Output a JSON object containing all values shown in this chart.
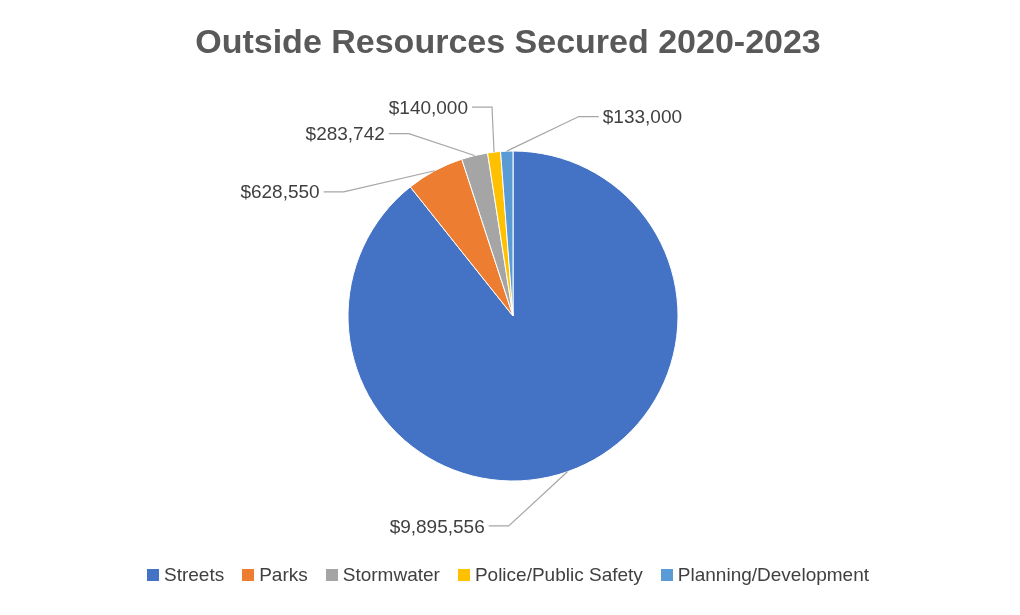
{
  "chart_data": {
    "type": "pie",
    "title": "Outside Resources Secured 2020-2023",
    "categories": [
      "Streets",
      "Parks",
      "Stormwater",
      "Police/Public Safety",
      "Planning/Development"
    ],
    "values": [
      9895556,
      628550,
      283742,
      140000,
      133000
    ],
    "value_labels": [
      "$9,895,556",
      "$628,550",
      "$283,742",
      "$140,000",
      "$133,000"
    ],
    "colors": [
      "#4472c4",
      "#ed7d31",
      "#a5a5a5",
      "#ffc000",
      "#5b9bd5"
    ],
    "legend": "bottom"
  }
}
